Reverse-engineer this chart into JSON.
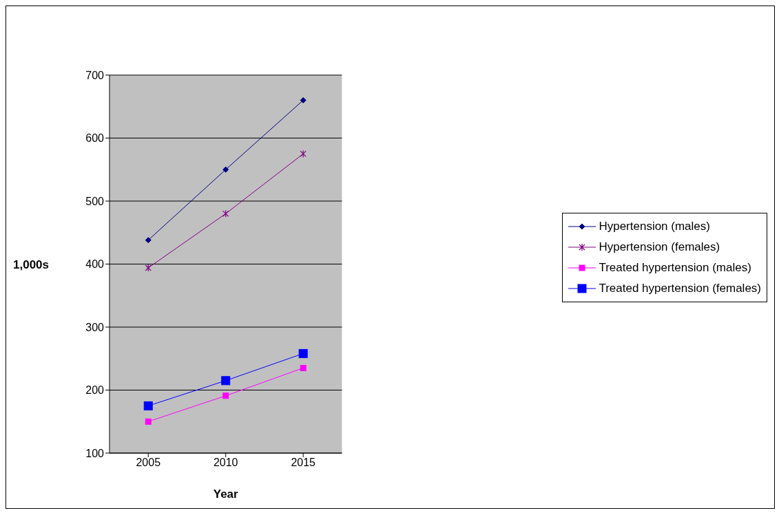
{
  "chart_data": {
    "type": "line",
    "xlabel": "Year",
    "ylabel": "1,000s",
    "categories": [
      "2005",
      "2010",
      "2015"
    ],
    "series": [
      {
        "name": "Hypertension (males)",
        "color": "#000080",
        "marker": "diamond",
        "values": [
          438,
          550,
          660
        ]
      },
      {
        "name": "Hypertension (females)",
        "color": "#800080",
        "marker": "cross",
        "values": [
          394,
          480,
          575
        ]
      },
      {
        "name": "Treated hypertension (males)",
        "color": "#ff00ff",
        "marker": "square",
        "values": [
          150,
          191,
          235
        ]
      },
      {
        "name": "Treated hypertension (females)",
        "color": "#0000ff",
        "marker": "square",
        "values": [
          175,
          215,
          258
        ]
      }
    ],
    "ylim": [
      100,
      700
    ],
    "yticks": [
      100,
      200,
      300,
      400,
      500,
      600,
      700
    ],
    "grid": "y",
    "legend": "right"
  }
}
